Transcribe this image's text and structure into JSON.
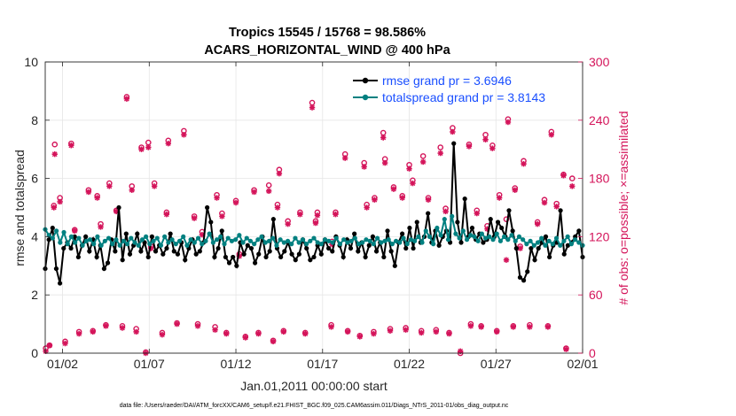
{
  "chart_data": {
    "type": "line",
    "title": "Tropics 15545 / 15768 = 98.586%",
    "subtitle": "ACARS_HORIZONTAL_WIND @ 400 hPa",
    "xlabel": "Jan.01,2011 00:00:00 start",
    "ylabel": "rmse and totalspread",
    "y2label": "# of obs: o=possible; ×=assimilated",
    "footnote": "data file: /Users/raeder/DAI/ATM_forcXX/CAM6_setup/f.e21.FHIST_BGC.f09_025.CAM6assim.011/Diags_NTrS_2011-01/obs_diag_output.nc",
    "xlim": [
      0,
      31
    ],
    "ylim": [
      0,
      10
    ],
    "y2lim": [
      0,
      300
    ],
    "xticks": [
      1,
      6,
      11,
      16,
      21,
      26,
      31
    ],
    "xticklabels": [
      "01/02",
      "01/07",
      "01/12",
      "01/17",
      "01/22",
      "01/27",
      "02/01"
    ],
    "yticks": [
      0,
      2,
      4,
      6,
      8,
      10
    ],
    "y2ticks": [
      0,
      60,
      120,
      180,
      240,
      300
    ],
    "legend_position": "top-right",
    "colors": {
      "rmse": "#000000",
      "spread": "#008080",
      "obs": "#d4145a",
      "legend_text": "#1a4fff",
      "right_axis": "#d4145a"
    },
    "series": [
      {
        "name": "rmse",
        "legend": "rmse grand pr = 3.6946",
        "values": [
          2.9,
          3.9,
          4.3,
          2.9,
          2.4,
          3.6,
          3.8,
          3.6,
          4.0,
          3.3,
          3.7,
          4.0,
          3.5,
          3.9,
          3.3,
          3.7,
          2.9,
          3.1,
          3.9,
          3.5,
          5.0,
          3.2,
          4.1,
          3.4,
          3.7,
          4.1,
          3.5,
          3.8,
          3.3,
          4.0,
          3.5,
          3.7,
          3.4,
          3.6,
          4.1,
          3.5,
          3.4,
          3.8,
          3.2,
          3.6,
          3.9,
          3.4,
          3.5,
          3.8,
          5.0,
          4.5,
          3.3,
          3.6,
          4.2,
          3.3,
          3.1,
          3.3,
          3.0,
          3.8,
          3.4,
          3.7,
          3.6,
          3.1,
          3.4,
          4.0,
          3.3,
          3.5,
          4.6,
          3.6,
          3.3,
          3.5,
          3.8,
          3.4,
          3.2,
          3.4,
          3.9,
          3.6,
          3.2,
          3.3,
          3.7,
          3.4,
          3.9,
          3.6,
          3.5,
          4.0,
          3.7,
          3.3,
          3.9,
          3.6,
          4.1,
          3.5,
          3.8,
          3.3,
          3.7,
          4.0,
          3.5,
          3.8,
          3.3,
          4.2,
          3.5,
          3.0,
          3.8,
          4.1,
          3.6,
          4.3,
          3.6,
          4.5,
          3.8,
          4.0,
          4.8,
          3.8,
          4.2,
          3.7,
          4.0,
          4.2,
          3.8,
          7.2,
          4.5,
          3.8,
          5.3,
          4.0,
          4.3,
          3.9,
          4.1,
          3.8,
          3.9,
          4.6,
          4.0,
          4.5,
          4.3,
          4.0,
          4.9,
          4.2,
          3.6,
          2.6,
          2.5,
          2.8,
          3.6,
          3.2,
          3.6,
          3.8,
          4.0,
          3.3,
          3.7,
          3.8,
          4.9,
          3.4,
          3.7,
          3.8,
          4.0,
          4.2,
          3.3
        ]
      },
      {
        "name": "totalspread",
        "legend": "totalspread grand pr = 3.8143",
        "values": [
          4.25,
          4.05,
          3.95,
          4.2,
          3.8,
          4.15,
          3.75,
          4.0,
          3.8,
          3.95,
          3.7,
          3.85,
          3.9,
          3.75,
          4.0,
          3.7,
          3.85,
          3.95,
          3.75,
          3.9,
          3.7,
          3.85,
          3.75,
          3.95,
          3.8,
          3.7,
          3.9,
          4.0,
          3.75,
          3.85,
          3.95,
          3.7,
          4.0,
          3.8,
          3.9,
          3.75,
          3.85,
          4.0,
          3.7,
          3.9,
          3.8,
          3.95,
          3.75,
          3.85,
          4.1,
          3.8,
          3.9,
          4.0,
          3.75,
          3.95,
          3.85,
          3.9,
          4.05,
          3.8,
          3.95,
          3.85,
          3.75,
          3.9,
          4.0,
          3.8,
          3.85,
          3.95,
          3.7,
          3.9,
          3.8,
          3.85,
          3.75,
          3.95,
          3.8,
          3.9,
          3.75,
          3.85,
          3.95,
          3.8,
          3.75,
          3.9,
          3.85,
          3.8,
          3.95,
          3.75,
          3.9,
          3.8,
          3.85,
          3.95,
          3.75,
          3.8,
          3.9,
          3.85,
          3.75,
          3.95,
          3.8,
          3.85,
          3.9,
          3.75,
          3.85,
          3.8,
          3.95,
          3.75,
          3.9,
          3.85,
          4.0,
          3.8,
          4.2,
          4.0,
          3.75,
          4.3,
          4.05,
          4.6,
          3.9,
          4.7,
          4.1,
          3.95,
          4.2,
          3.9,
          4.05,
          4.0,
          3.85,
          4.1,
          3.95,
          4.0,
          3.9,
          4.1,
          3.85,
          4.0,
          3.9,
          4.05,
          3.85,
          4.0,
          3.9,
          3.75,
          3.85,
          3.7,
          3.8,
          3.95,
          3.7,
          3.85,
          3.75,
          3.95,
          3.7,
          3.85,
          4.0,
          3.75,
          3.9,
          3.8,
          3.7
        ]
      }
    ],
    "obs_possible": [
      [
        0.03,
        5
      ],
      [
        0.25,
        8
      ],
      [
        0.5,
        152
      ],
      [
        0.55,
        215
      ],
      [
        0.85,
        160
      ],
      [
        1.15,
        12
      ],
      [
        1.5,
        216
      ],
      [
        1.7,
        127
      ],
      [
        1.95,
        22
      ],
      [
        2.5,
        168
      ],
      [
        2.75,
        23
      ],
      [
        3.0,
        162
      ],
      [
        3.2,
        133
      ],
      [
        3.5,
        29
      ],
      [
        3.7,
        175
      ],
      [
        4.1,
        147
      ],
      [
        4.45,
        28
      ],
      [
        4.7,
        264
      ],
      [
        5.0,
        172
      ],
      [
        5.25,
        25
      ],
      [
        5.55,
        212
      ],
      [
        5.8,
        1
      ],
      [
        5.95,
        217
      ],
      [
        6.1,
        110
      ],
      [
        6.3,
        175
      ],
      [
        6.75,
        21
      ],
      [
        7.0,
        145
      ],
      [
        7.1,
        219
      ],
      [
        7.6,
        31
      ],
      [
        8.0,
        229
      ],
      [
        8.6,
        141
      ],
      [
        8.8,
        30
      ],
      [
        9.05,
        125
      ],
      [
        9.8,
        27
      ],
      [
        9.9,
        163
      ],
      [
        10.2,
        144
      ],
      [
        10.45,
        21
      ],
      [
        11.0,
        157
      ],
      [
        11.2,
        102
      ],
      [
        11.55,
        17
      ],
      [
        12.05,
        168
      ],
      [
        12.3,
        21
      ],
      [
        12.9,
        173
      ],
      [
        13.15,
        13
      ],
      [
        13.4,
        153
      ],
      [
        13.5,
        189
      ],
      [
        13.75,
        23
      ],
      [
        14.0,
        136
      ],
      [
        14.7,
        145
      ],
      [
        15.0,
        21
      ],
      [
        15.4,
        258
      ],
      [
        15.6,
        136
      ],
      [
        15.7,
        145
      ],
      [
        16.5,
        29
      ],
      [
        16.55,
        115
      ],
      [
        16.75,
        145
      ],
      [
        17.3,
        205
      ],
      [
        17.45,
        23
      ],
      [
        18.15,
        18
      ],
      [
        18.4,
        196
      ],
      [
        18.55,
        153
      ],
      [
        18.95,
        22
      ],
      [
        19.0,
        160
      ],
      [
        19.5,
        227
      ],
      [
        19.6,
        200
      ],
      [
        19.9,
        25
      ],
      [
        20.1,
        171
      ],
      [
        20.6,
        162
      ],
      [
        20.8,
        26
      ],
      [
        21.0,
        194
      ],
      [
        21.2,
        178
      ],
      [
        21.7,
        23
      ],
      [
        21.8,
        203
      ],
      [
        22.1,
        160
      ],
      [
        22.55,
        24
      ],
      [
        22.8,
        212
      ],
      [
        23.1,
        149
      ],
      [
        23.3,
        21
      ],
      [
        23.5,
        232
      ],
      [
        23.95,
        0
      ],
      [
        24.45,
        215
      ],
      [
        24.55,
        30
      ],
      [
        24.9,
        147
      ],
      [
        25.15,
        28
      ],
      [
        25.4,
        225
      ],
      [
        25.5,
        131
      ],
      [
        25.8,
        214
      ],
      [
        26.05,
        23
      ],
      [
        26.2,
        163
      ],
      [
        26.6,
        138
      ],
      [
        26.7,
        241
      ],
      [
        27.0,
        28
      ],
      [
        27.1,
        170
      ],
      [
        27.4,
        110
      ],
      [
        27.6,
        198
      ],
      [
        27.95,
        29
      ],
      [
        28.4,
        135
      ],
      [
        28.8,
        158
      ],
      [
        29.0,
        28
      ],
      [
        29.2,
        228
      ],
      [
        29.5,
        154
      ],
      [
        29.9,
        184
      ],
      [
        30.05,
        5
      ],
      [
        30.4,
        180
      ]
    ],
    "obs_assimilated": [
      [
        0.03,
        2
      ],
      [
        0.25,
        8
      ],
      [
        0.5,
        150
      ],
      [
        0.55,
        205
      ],
      [
        0.85,
        156
      ],
      [
        1.15,
        10
      ],
      [
        1.5,
        214
      ],
      [
        1.7,
        126
      ],
      [
        1.95,
        20
      ],
      [
        2.5,
        166
      ],
      [
        2.75,
        22
      ],
      [
        3.0,
        160
      ],
      [
        3.2,
        130
      ],
      [
        3.5,
        28
      ],
      [
        3.7,
        172
      ],
      [
        4.1,
        146
      ],
      [
        4.45,
        26
      ],
      [
        4.7,
        262
      ],
      [
        5.0,
        168
      ],
      [
        5.25,
        22
      ],
      [
        5.55,
        210
      ],
      [
        5.8,
        0
      ],
      [
        5.95,
        212
      ],
      [
        6.1,
        108
      ],
      [
        6.3,
        172
      ],
      [
        6.75,
        19
      ],
      [
        7.0,
        143
      ],
      [
        7.1,
        216
      ],
      [
        7.6,
        30
      ],
      [
        8.0,
        225
      ],
      [
        8.6,
        139
      ],
      [
        8.8,
        28
      ],
      [
        9.05,
        122
      ],
      [
        9.8,
        24
      ],
      [
        9.9,
        160
      ],
      [
        10.2,
        141
      ],
      [
        10.45,
        20
      ],
      [
        11.0,
        155
      ],
      [
        11.2,
        100
      ],
      [
        11.55,
        16
      ],
      [
        12.05,
        166
      ],
      [
        12.3,
        20
      ],
      [
        12.9,
        167
      ],
      [
        13.15,
        12
      ],
      [
        13.4,
        150
      ],
      [
        13.5,
        185
      ],
      [
        13.75,
        22
      ],
      [
        14.0,
        133
      ],
      [
        14.7,
        143
      ],
      [
        15.0,
        20
      ],
      [
        15.4,
        253
      ],
      [
        15.6,
        134
      ],
      [
        15.7,
        142
      ],
      [
        16.5,
        27
      ],
      [
        16.55,
        112
      ],
      [
        16.75,
        143
      ],
      [
        17.3,
        201
      ],
      [
        17.45,
        22
      ],
      [
        18.15,
        17
      ],
      [
        18.4,
        192
      ],
      [
        18.55,
        150
      ],
      [
        18.95,
        20
      ],
      [
        19.0,
        158
      ],
      [
        19.5,
        222
      ],
      [
        19.6,
        196
      ],
      [
        19.9,
        23
      ],
      [
        20.1,
        169
      ],
      [
        20.6,
        160
      ],
      [
        20.8,
        24
      ],
      [
        21.0,
        190
      ],
      [
        21.2,
        175
      ],
      [
        21.7,
        21
      ],
      [
        21.8,
        197
      ],
      [
        22.1,
        158
      ],
      [
        22.55,
        22
      ],
      [
        22.8,
        206
      ],
      [
        23.1,
        146
      ],
      [
        23.3,
        20
      ],
      [
        23.5,
        228
      ],
      [
        23.95,
        2
      ],
      [
        24.45,
        213
      ],
      [
        24.55,
        28
      ],
      [
        24.9,
        144
      ],
      [
        25.15,
        27
      ],
      [
        25.4,
        220
      ],
      [
        25.5,
        128
      ],
      [
        25.8,
        211
      ],
      [
        26.05,
        22
      ],
      [
        26.2,
        160
      ],
      [
        26.6,
        96
      ],
      [
        26.7,
        238
      ],
      [
        27.0,
        27
      ],
      [
        27.1,
        168
      ],
      [
        27.4,
        108
      ],
      [
        27.6,
        195
      ],
      [
        27.95,
        27
      ],
      [
        28.4,
        133
      ],
      [
        28.8,
        155
      ],
      [
        29.0,
        27
      ],
      [
        29.2,
        225
      ],
      [
        29.5,
        151
      ],
      [
        29.9,
        183
      ],
      [
        30.05,
        4
      ],
      [
        30.4,
        172
      ]
    ]
  }
}
